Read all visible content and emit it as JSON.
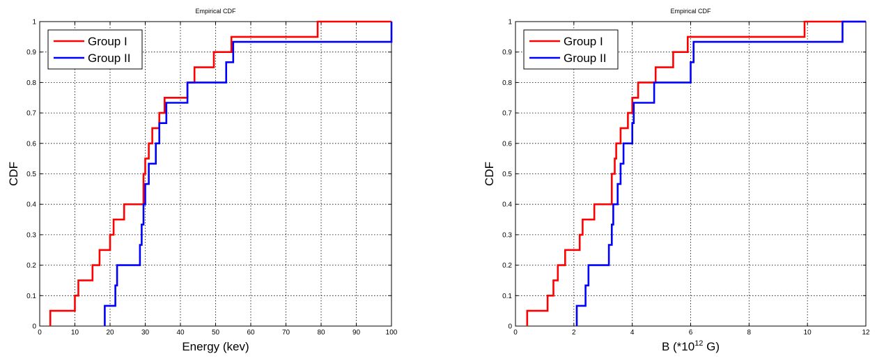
{
  "chart_data": [
    {
      "type": "line",
      "step": true,
      "title": "Empirical CDF",
      "xlabel": "Energy (kev)",
      "ylabel": "CDF",
      "xlim": [
        0,
        100
      ],
      "ylim": [
        0,
        1
      ],
      "xticks": [
        "0",
        "10",
        "20",
        "30",
        "40",
        "50",
        "60",
        "70",
        "80",
        "90",
        "100"
      ],
      "yticks": [
        "0",
        "0.1",
        "0.2",
        "0.3",
        "0.4",
        "0.5",
        "0.6",
        "0.7",
        "0.8",
        "0.9",
        "1"
      ],
      "grid": true,
      "legend_position": "top-left",
      "series": [
        {
          "name": "Group I",
          "color": "#ff0000",
          "x": [
            3,
            10,
            11,
            15,
            17,
            20,
            21,
            24,
            29.5,
            30,
            31,
            32,
            34,
            35.5,
            42,
            44,
            49.5,
            54.5,
            79,
            79
          ],
          "y": [
            0.05,
            0.1,
            0.15,
            0.2,
            0.25,
            0.3,
            0.35,
            0.4,
            0.5,
            0.55,
            0.6,
            0.65,
            0.7,
            0.75,
            0.8,
            0.85,
            0.9,
            0.95,
            1.0,
            1.0
          ]
        },
        {
          "name": "Group II",
          "color": "#0000ff",
          "x": [
            18.5,
            21.5,
            22,
            28.5,
            29,
            29.5,
            30,
            31,
            33,
            34,
            36,
            37,
            42,
            53,
            55,
            100
          ],
          "y": [
            0.0667,
            0.1333,
            0.2,
            0.2667,
            0.3333,
            0.4,
            0.4667,
            0.5333,
            0.6,
            0.6667,
            0.7333,
            0.7333,
            0.8,
            0.8667,
            0.9333,
            1.0
          ]
        }
      ]
    },
    {
      "type": "line",
      "step": true,
      "title": "Empirical CDF",
      "xlabel_main": "B (*10",
      "xlabel_sup": "12",
      "xlabel_tail": " G)",
      "ylabel": "CDF",
      "xlim": [
        0,
        12
      ],
      "ylim": [
        0,
        1
      ],
      "xticks": [
        "0",
        "2",
        "4",
        "6",
        "8",
        "10",
        "12"
      ],
      "yticks": [
        "0",
        "0.1",
        "0.2",
        "0.3",
        "0.4",
        "0.5",
        "0.6",
        "0.7",
        "0.8",
        "0.9",
        "1"
      ],
      "grid": true,
      "legend_position": "top-left",
      "series": [
        {
          "name": "Group I",
          "color": "#ff0000",
          "x": [
            0.4,
            1.1,
            1.3,
            1.45,
            1.7,
            2.2,
            2.3,
            2.7,
            3.3,
            3.4,
            3.45,
            3.6,
            3.85,
            4.0,
            4.2,
            4.8,
            5.4,
            5.9,
            6.2,
            9.9
          ],
          "y": [
            0.05,
            0.1,
            0.15,
            0.2,
            0.25,
            0.3,
            0.35,
            0.4,
            0.5,
            0.55,
            0.6,
            0.65,
            0.7,
            0.75,
            0.8,
            0.85,
            0.9,
            0.95,
            0.95,
            1.0
          ]
        },
        {
          "name": "Group II",
          "color": "#0000ff",
          "x": [
            2.1,
            2.4,
            2.5,
            3.2,
            3.3,
            3.35,
            3.5,
            3.6,
            3.7,
            4.0,
            4.05,
            4.2,
            4.75,
            6.0,
            6.1,
            11.2
          ],
          "y": [
            0.0667,
            0.1333,
            0.2,
            0.2667,
            0.3333,
            0.4,
            0.4667,
            0.5333,
            0.6,
            0.6667,
            0.7333,
            0.7333,
            0.8,
            0.8667,
            0.9333,
            1.0
          ]
        }
      ]
    }
  ]
}
